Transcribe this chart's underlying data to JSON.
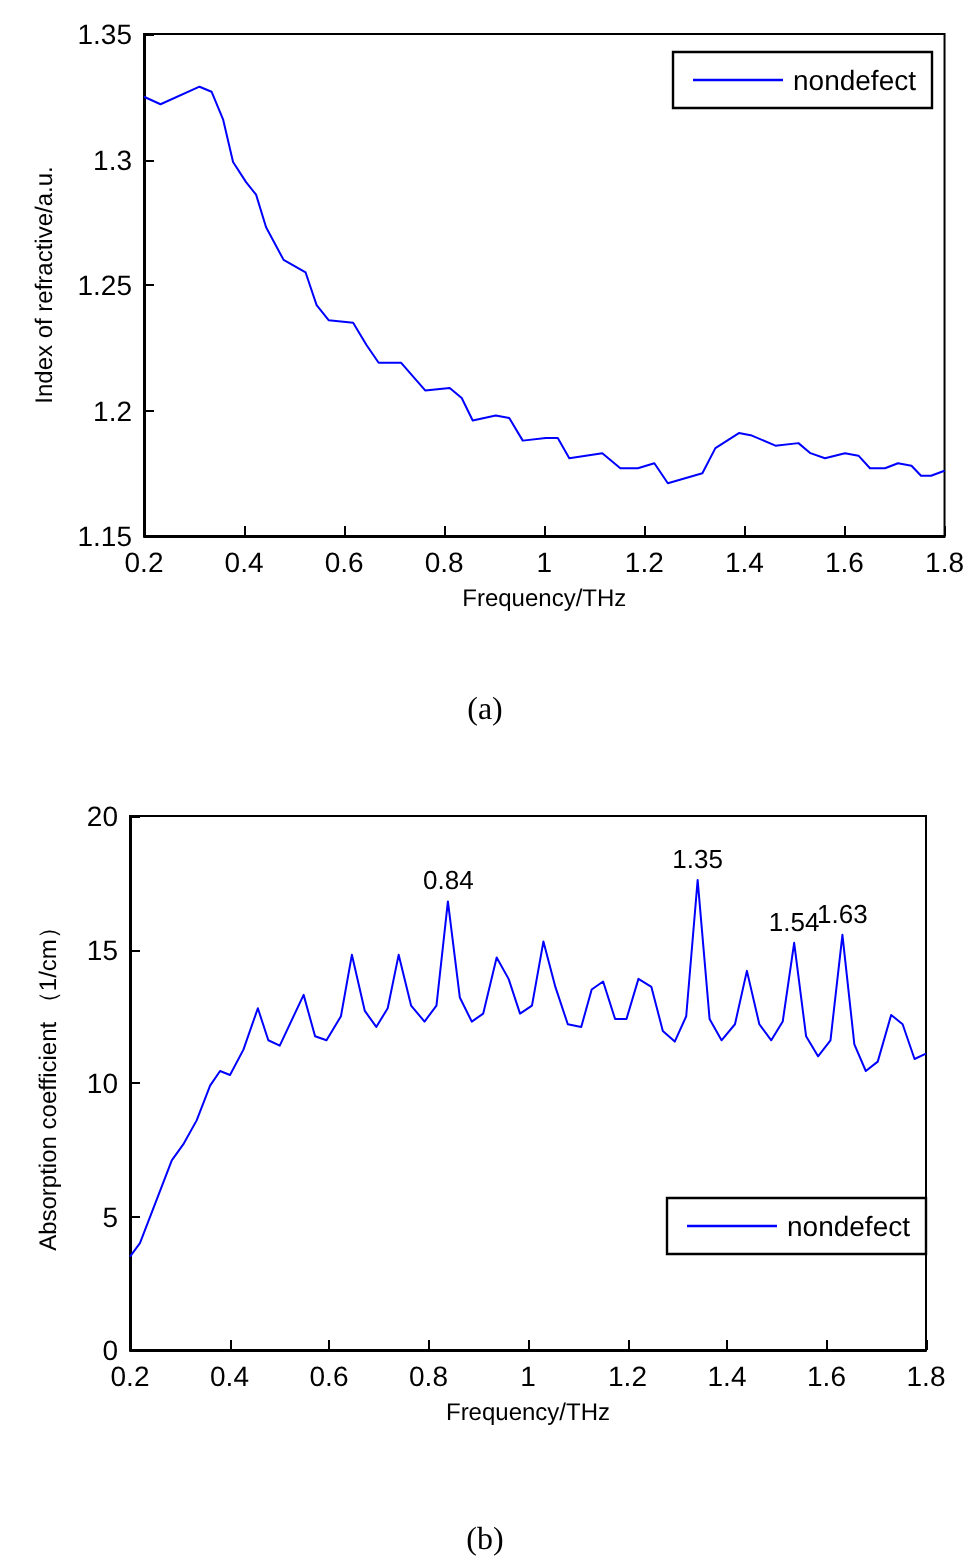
{
  "chart_data": [
    {
      "type": "line",
      "xlabel": "Frequency/THz",
      "ylabel": "Index of refractive/a.u.",
      "annotations": [
        "(a)"
      ],
      "legend": "top right",
      "grid": false,
      "marker": "none",
      "xlim": [
        0.2,
        1.8
      ],
      "xticks": [
        0.2,
        0.4,
        0.6,
        0.8,
        1,
        1.2,
        1.4,
        1.6,
        1.8
      ],
      "ylim": [
        1.15,
        1.35
      ],
      "yticks": [
        1.15,
        1.2,
        1.25,
        1.3,
        1.35
      ],
      "series": [
        {
          "name": "nondefect",
          "color": "#0000ff",
          "x": [
            0.2,
            0.233,
            0.311,
            0.335,
            0.358,
            0.378,
            0.404,
            0.424,
            0.444,
            0.479,
            0.523,
            0.545,
            0.569,
            0.618,
            0.645,
            0.669,
            0.714,
            0.762,
            0.811,
            0.835,
            0.857,
            0.903,
            0.93,
            0.957,
            1.003,
            1.027,
            1.05,
            1.116,
            1.152,
            1.187,
            1.22,
            1.247,
            1.316,
            1.342,
            1.389,
            1.415,
            1.462,
            1.508,
            1.532,
            1.561,
            1.601,
            1.628,
            1.651,
            1.681,
            1.707,
            1.734,
            1.753,
            1.773,
            1.8
          ],
          "values": [
            1.325,
            1.322,
            1.329,
            1.327,
            1.316,
            1.299,
            1.291,
            1.286,
            1.273,
            1.26,
            1.255,
            1.242,
            1.236,
            1.235,
            1.226,
            1.219,
            1.219,
            1.208,
            1.209,
            1.205,
            1.196,
            1.198,
            1.197,
            1.188,
            1.189,
            1.189,
            1.181,
            1.183,
            1.177,
            1.177,
            1.179,
            1.171,
            1.175,
            1.185,
            1.191,
            1.19,
            1.186,
            1.187,
            1.183,
            1.181,
            1.183,
            1.182,
            1.177,
            1.177,
            1.179,
            1.178,
            1.174,
            1.174,
            1.176
          ]
        }
      ]
    },
    {
      "type": "line",
      "xlabel": "Frequency/THz",
      "ylabel": "Absorption coefficient （1/cm）",
      "annotations": [
        {
          "text": "0.84",
          "x": 0.84,
          "y": 16.8
        },
        {
          "text": "1.35",
          "x": 1.341,
          "y": 17.6
        },
        {
          "text": "1.54",
          "x": 1.535,
          "y": 15.25
        },
        {
          "text": "1.63",
          "x": 1.632,
          "y": 15.55
        },
        "(b)"
      ],
      "legend": "bottom right",
      "grid": false,
      "marker": "none",
      "xlim": [
        0.2,
        1.8
      ],
      "xticks": [
        0.2,
        0.4,
        0.6,
        0.8,
        1,
        1.2,
        1.4,
        1.6,
        1.8
      ],
      "ylim": [
        0,
        20
      ],
      "yticks": [
        0,
        5,
        10,
        15,
        20
      ],
      "series": [
        {
          "name": "nondefect",
          "color": "#0000ff",
          "x": [
            0.2,
            0.22,
            0.284,
            0.307,
            0.334,
            0.361,
            0.381,
            0.401,
            0.428,
            0.457,
            0.478,
            0.501,
            0.549,
            0.572,
            0.595,
            0.624,
            0.646,
            0.672,
            0.695,
            0.718,
            0.74,
            0.765,
            0.792,
            0.816,
            0.839,
            0.863,
            0.887,
            0.91,
            0.937,
            0.961,
            0.984,
            1.008,
            1.031,
            1.055,
            1.08,
            1.107,
            1.128,
            1.151,
            1.175,
            1.198,
            1.222,
            1.248,
            1.271,
            1.295,
            1.318,
            1.341,
            1.365,
            1.389,
            1.416,
            1.44,
            1.465,
            1.489,
            1.512,
            1.535,
            1.559,
            1.583,
            1.608,
            1.632,
            1.656,
            1.679,
            1.703,
            1.73,
            1.753,
            1.777,
            1.8
          ],
          "values": [
            3.5,
            4.0,
            7.1,
            7.7,
            8.6,
            9.9,
            10.45,
            10.3,
            11.25,
            12.8,
            11.6,
            11.4,
            13.3,
            11.75,
            11.6,
            12.5,
            14.8,
            12.7,
            12.1,
            12.8,
            14.8,
            12.9,
            12.3,
            12.9,
            16.8,
            13.2,
            12.3,
            12.6,
            14.7,
            13.9,
            12.6,
            12.9,
            15.3,
            13.6,
            12.2,
            12.1,
            13.5,
            13.8,
            12.4,
            12.4,
            13.9,
            13.6,
            11.95,
            11.55,
            12.5,
            17.6,
            12.4,
            11.6,
            12.2,
            14.2,
            12.2,
            11.6,
            12.3,
            15.25,
            11.75,
            11.0,
            11.6,
            15.55,
            11.45,
            10.45,
            10.8,
            12.55,
            12.2,
            10.9,
            11.1
          ]
        }
      ]
    }
  ]
}
